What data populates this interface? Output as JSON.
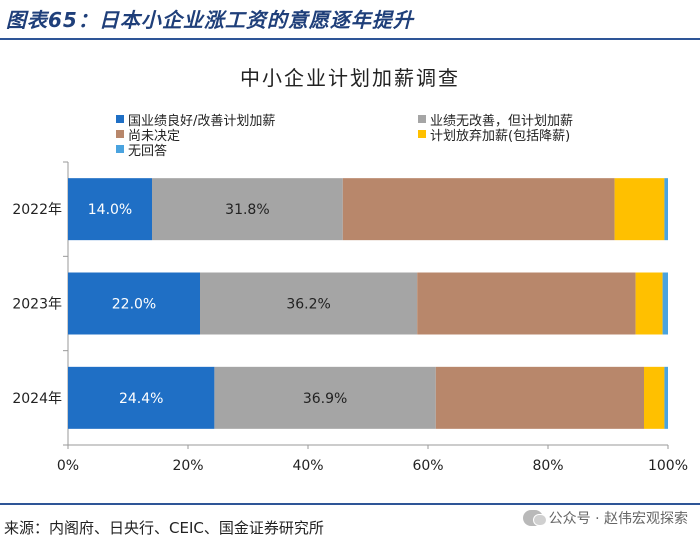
{
  "figure": {
    "title": "图表65：日本小企业涨工资的意愿逐年提升",
    "source": "来源：内阁府、日央行、CEIC、国金证券研究所",
    "watermark": "公众号 · 赵伟宏观探索"
  },
  "chart_data": {
    "type": "bar",
    "orientation": "horizontal",
    "stacked": true,
    "title": "中小企业计划加薪调查",
    "categories": [
      "2022年",
      "2023年",
      "2024年"
    ],
    "xlim": [
      0,
      100
    ],
    "xticks": [
      "0%",
      "20%",
      "40%",
      "60%",
      "80%",
      "100%"
    ],
    "series": [
      {
        "name": "国业绩良好/改善计划加薪",
        "color": "#1f6fc5",
        "values": [
          14.0,
          22.0,
          24.4
        ],
        "labels": [
          "14.0%",
          "22.0%",
          "24.4%"
        ]
      },
      {
        "name": "业绩无改善，但计划加薪",
        "color": "#a5a5a5",
        "values": [
          31.8,
          36.2,
          36.9
        ],
        "labels": [
          "31.8%",
          "36.2%",
          "36.9%"
        ]
      },
      {
        "name": "尚未决定",
        "color": "#b8876b",
        "values": [
          45.3,
          36.4,
          34.7
        ],
        "labels": [
          "",
          "",
          ""
        ]
      },
      {
        "name": "计划放弃加薪(包括降薪)",
        "color": "#ffc000",
        "values": [
          8.3,
          4.5,
          3.4
        ],
        "labels": [
          "",
          "",
          ""
        ]
      },
      {
        "name": "无回答",
        "color": "#4aa3df",
        "values": [
          0.6,
          0.9,
          0.6
        ],
        "labels": [
          "",
          "",
          ""
        ]
      }
    ]
  }
}
